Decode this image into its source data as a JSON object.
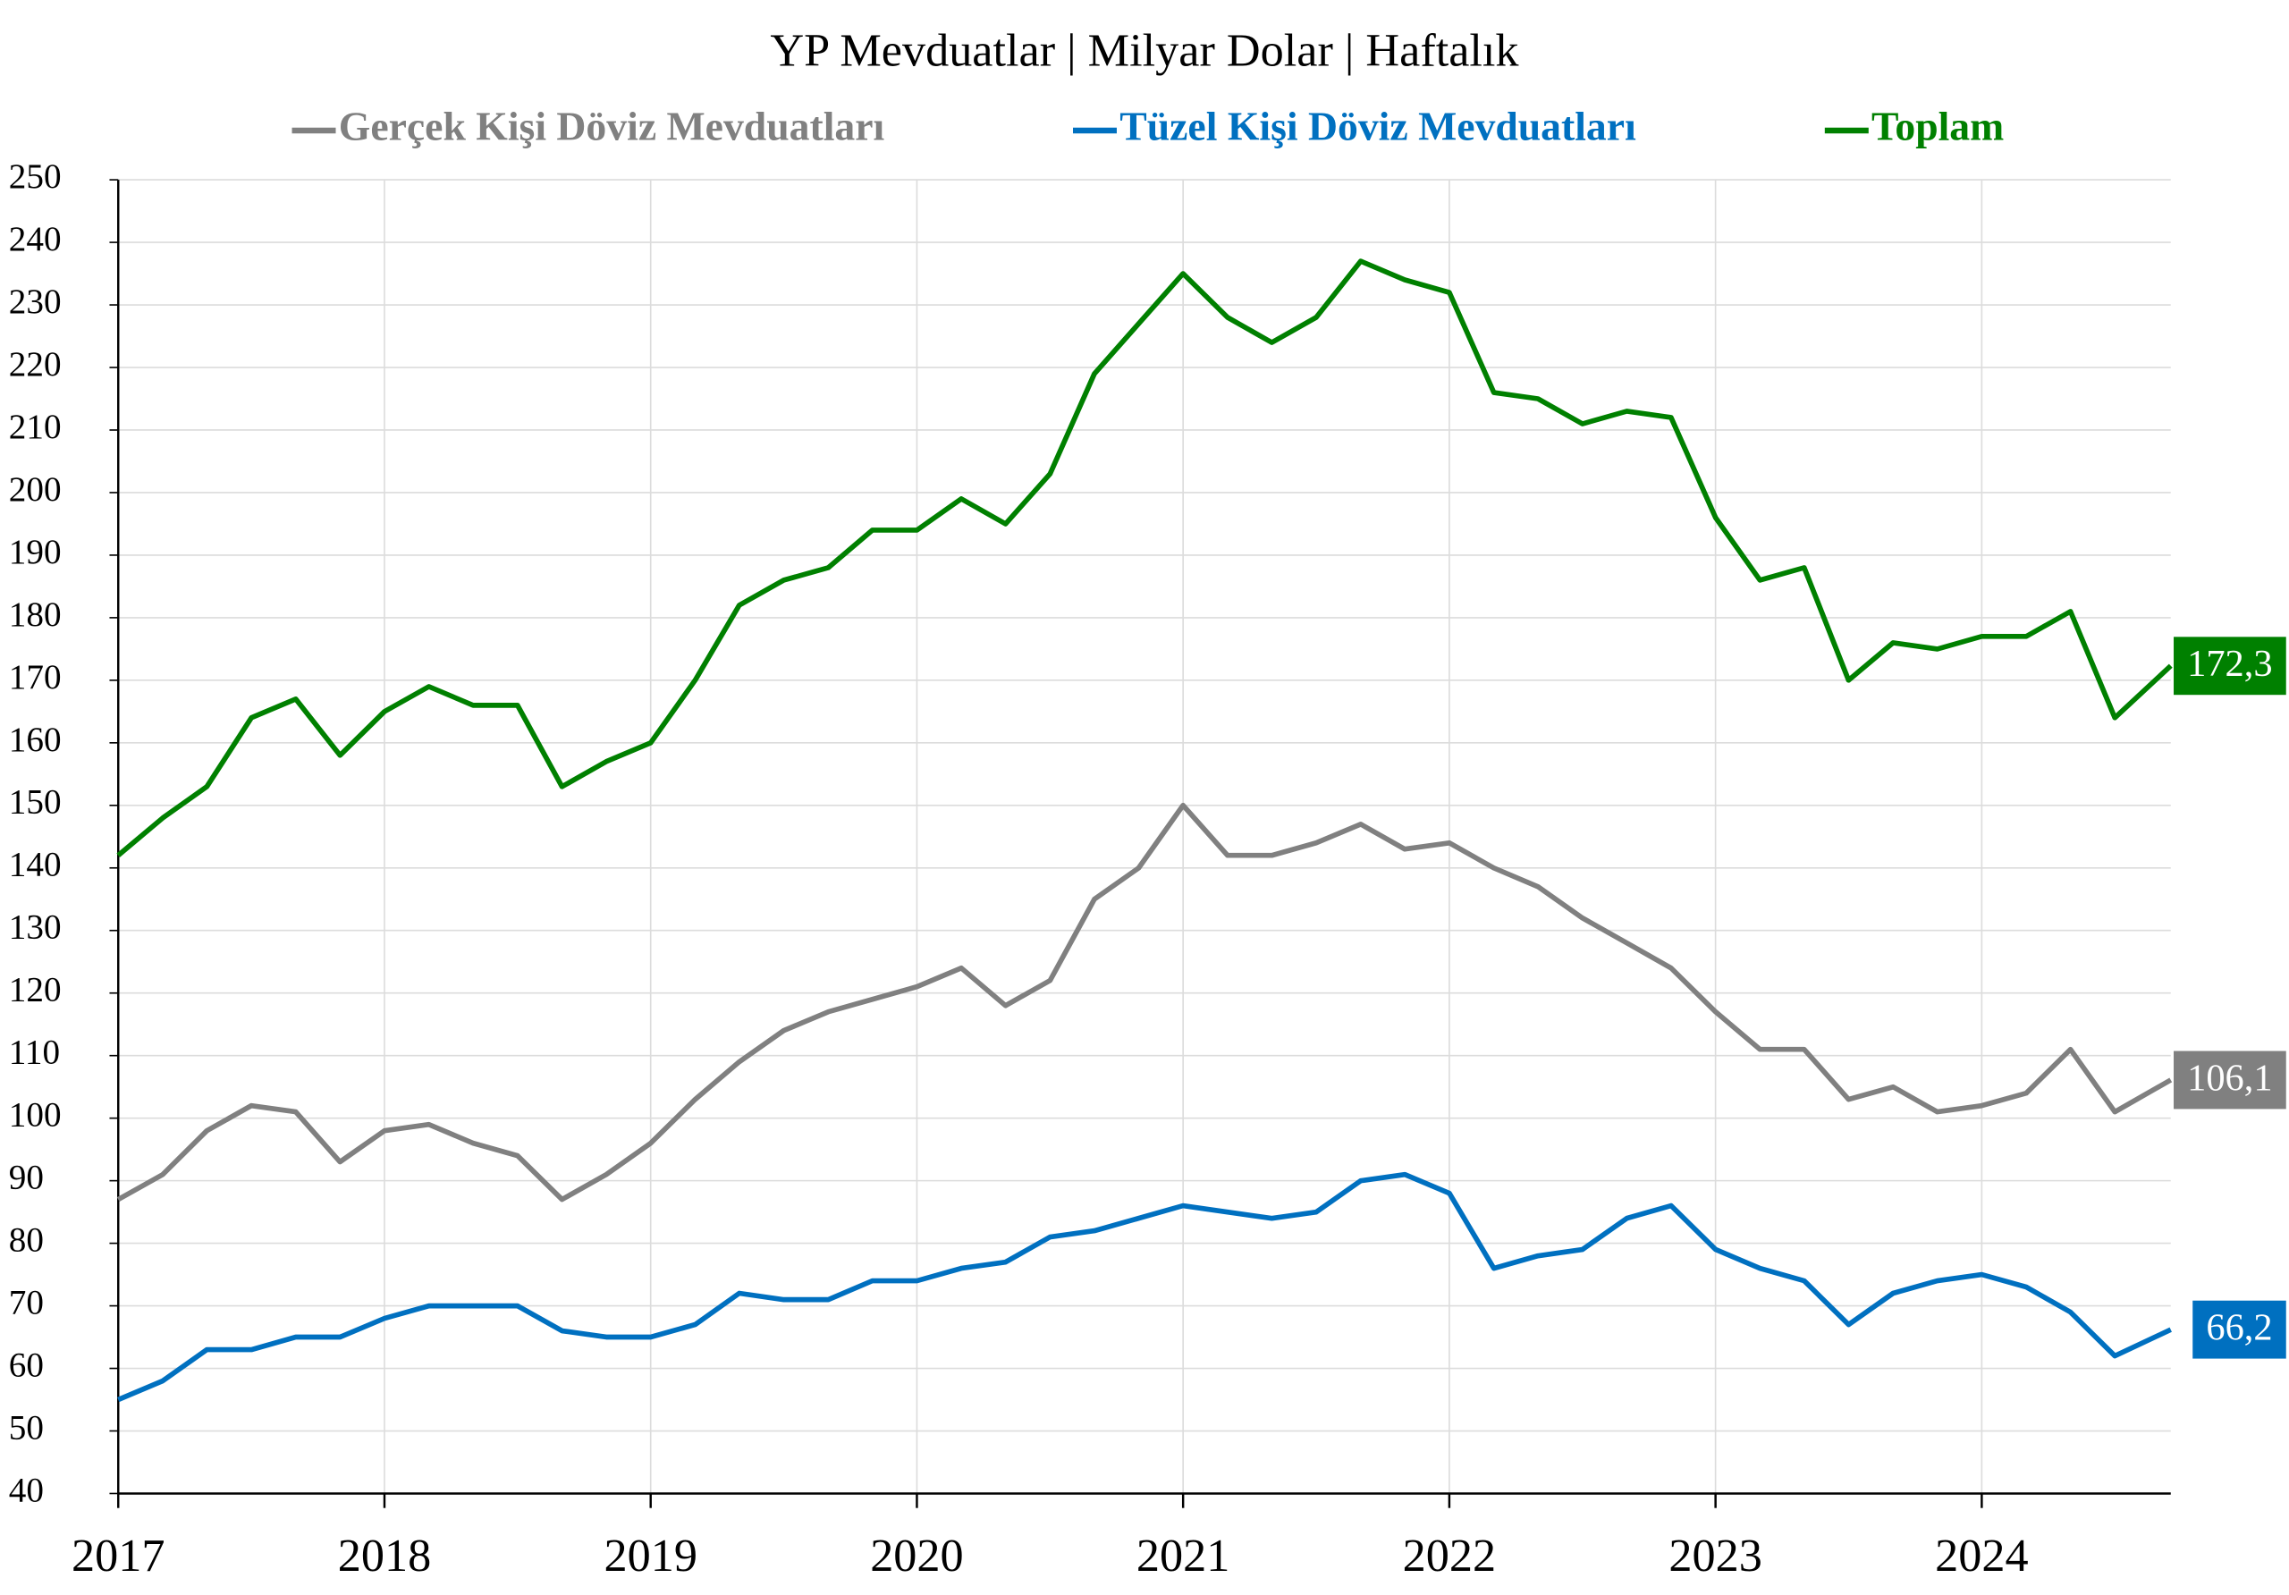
{
  "chart_data": {
    "type": "line",
    "title": "YP Mevduatlar | Milyar Dolar | Haftalık",
    "x": [
      2017,
      2017.167,
      2017.333,
      2017.5,
      2017.667,
      2017.833,
      2018,
      2018.167,
      2018.333,
      2018.5,
      2018.667,
      2018.833,
      2019,
      2019.167,
      2019.333,
      2019.5,
      2019.667,
      2019.833,
      2020,
      2020.167,
      2020.333,
      2020.5,
      2020.667,
      2020.833,
      2021,
      2021.167,
      2021.333,
      2021.5,
      2021.667,
      2021.833,
      2022,
      2022.167,
      2022.333,
      2022.5,
      2022.667,
      2022.833,
      2023,
      2023.167,
      2023.333,
      2023.5,
      2023.667,
      2023.833,
      2024,
      2024.167,
      2024.333,
      2024.5,
      2024.71
    ],
    "series": [
      {
        "name": "Gerçek Kişi Döviz Mevduatları",
        "color": "#808080",
        "values": [
          87,
          91,
          98,
          102,
          101,
          93,
          98,
          99,
          96,
          94,
          87,
          91,
          96,
          103,
          109,
          114,
          117,
          119,
          121,
          124,
          118,
          122,
          135,
          140,
          150,
          142,
          142,
          144,
          147,
          143,
          144,
          140,
          137,
          132,
          128,
          124,
          117,
          111,
          111,
          103,
          105,
          101,
          102,
          104,
          111,
          101,
          106.1
        ],
        "value_labels": [
          null,
          null,
          null,
          null,
          null,
          null,
          null,
          null,
          null,
          null,
          null,
          null,
          null,
          null,
          null,
          null,
          null,
          null,
          null,
          null,
          null,
          null,
          null,
          null,
          null,
          null,
          null,
          null,
          null,
          null,
          null,
          null,
          null,
          null,
          null,
          null,
          null,
          null,
          null,
          null,
          null,
          null,
          null,
          null,
          null,
          null,
          "106,1"
        ]
      },
      {
        "name": "Tüzel Kişi Döviz Mevduatları",
        "color": "#0070c0",
        "values": [
          55,
          58,
          63,
          63,
          65,
          65,
          68,
          70,
          70,
          70,
          66,
          65,
          65,
          67,
          72,
          71,
          71,
          74,
          74,
          76,
          77,
          81,
          82,
          84,
          86,
          85,
          84,
          85,
          90,
          91,
          88,
          76,
          78,
          79,
          84,
          86,
          79,
          76,
          74,
          67,
          72,
          74,
          75,
          73,
          69,
          62,
          66.2
        ],
        "value_labels": [
          null,
          null,
          null,
          null,
          null,
          null,
          null,
          null,
          null,
          null,
          null,
          null,
          null,
          null,
          null,
          null,
          null,
          null,
          null,
          null,
          null,
          null,
          null,
          null,
          null,
          null,
          null,
          null,
          null,
          null,
          null,
          null,
          null,
          null,
          null,
          null,
          null,
          null,
          null,
          null,
          null,
          null,
          null,
          null,
          null,
          null,
          "66,2"
        ]
      },
      {
        "name": "Toplam",
        "color": "#008000",
        "values": [
          142,
          148,
          153,
          164,
          167,
          158,
          165,
          169,
          166,
          166,
          153,
          157,
          160,
          170,
          182,
          186,
          188,
          194,
          194,
          199,
          195,
          203,
          219,
          227,
          235,
          228,
          224,
          228,
          237,
          234,
          232,
          216,
          215,
          211,
          213,
          212,
          196,
          186,
          188,
          170,
          176,
          175,
          177,
          177,
          181,
          164,
          172.3
        ],
        "value_labels": [
          null,
          null,
          null,
          null,
          null,
          null,
          null,
          null,
          null,
          null,
          null,
          null,
          null,
          null,
          null,
          null,
          null,
          null,
          null,
          null,
          null,
          null,
          null,
          null,
          null,
          null,
          null,
          null,
          null,
          null,
          null,
          null,
          null,
          null,
          null,
          null,
          null,
          null,
          null,
          null,
          null,
          null,
          null,
          null,
          null,
          null,
          "172,3"
        ]
      }
    ],
    "xlim": [
      2017,
      2024.71
    ],
    "xticks": [
      2017,
      2018,
      2019,
      2020,
      2021,
      2022,
      2023,
      2024
    ],
    "ylim": [
      40,
      250
    ],
    "yticks": [
      40,
      50,
      60,
      70,
      80,
      90,
      100,
      110,
      120,
      130,
      140,
      150,
      160,
      170,
      180,
      190,
      200,
      210,
      220,
      230,
      240,
      250
    ],
    "grid": true
  }
}
